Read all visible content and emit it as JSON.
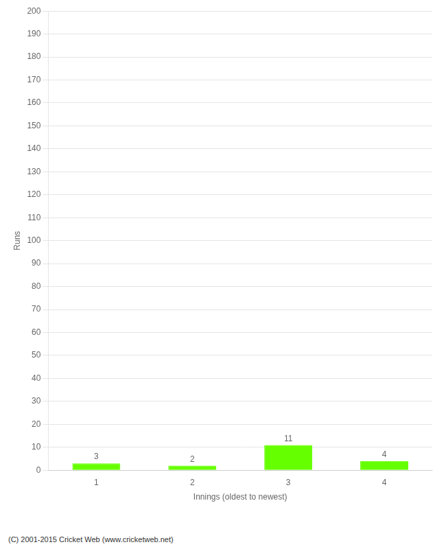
{
  "chart_data": {
    "type": "bar",
    "categories": [
      1,
      2,
      3,
      4
    ],
    "values": [
      3,
      2,
      11,
      4
    ],
    "color": "#66ff00",
    "xlabel": "Innings (oldest to newest)",
    "ylabel": "Runs",
    "ylim": [
      0,
      200
    ],
    "yticks": [
      0,
      10,
      20,
      30,
      40,
      50,
      60,
      70,
      80,
      90,
      100,
      110,
      120,
      130,
      140,
      150,
      160,
      170,
      180,
      190,
      200
    ],
    "grid": true,
    "data_labels": true,
    "annotations": [
      "(C) 2001-2015 Cricket Web (www.cricketweb.net)"
    ]
  }
}
